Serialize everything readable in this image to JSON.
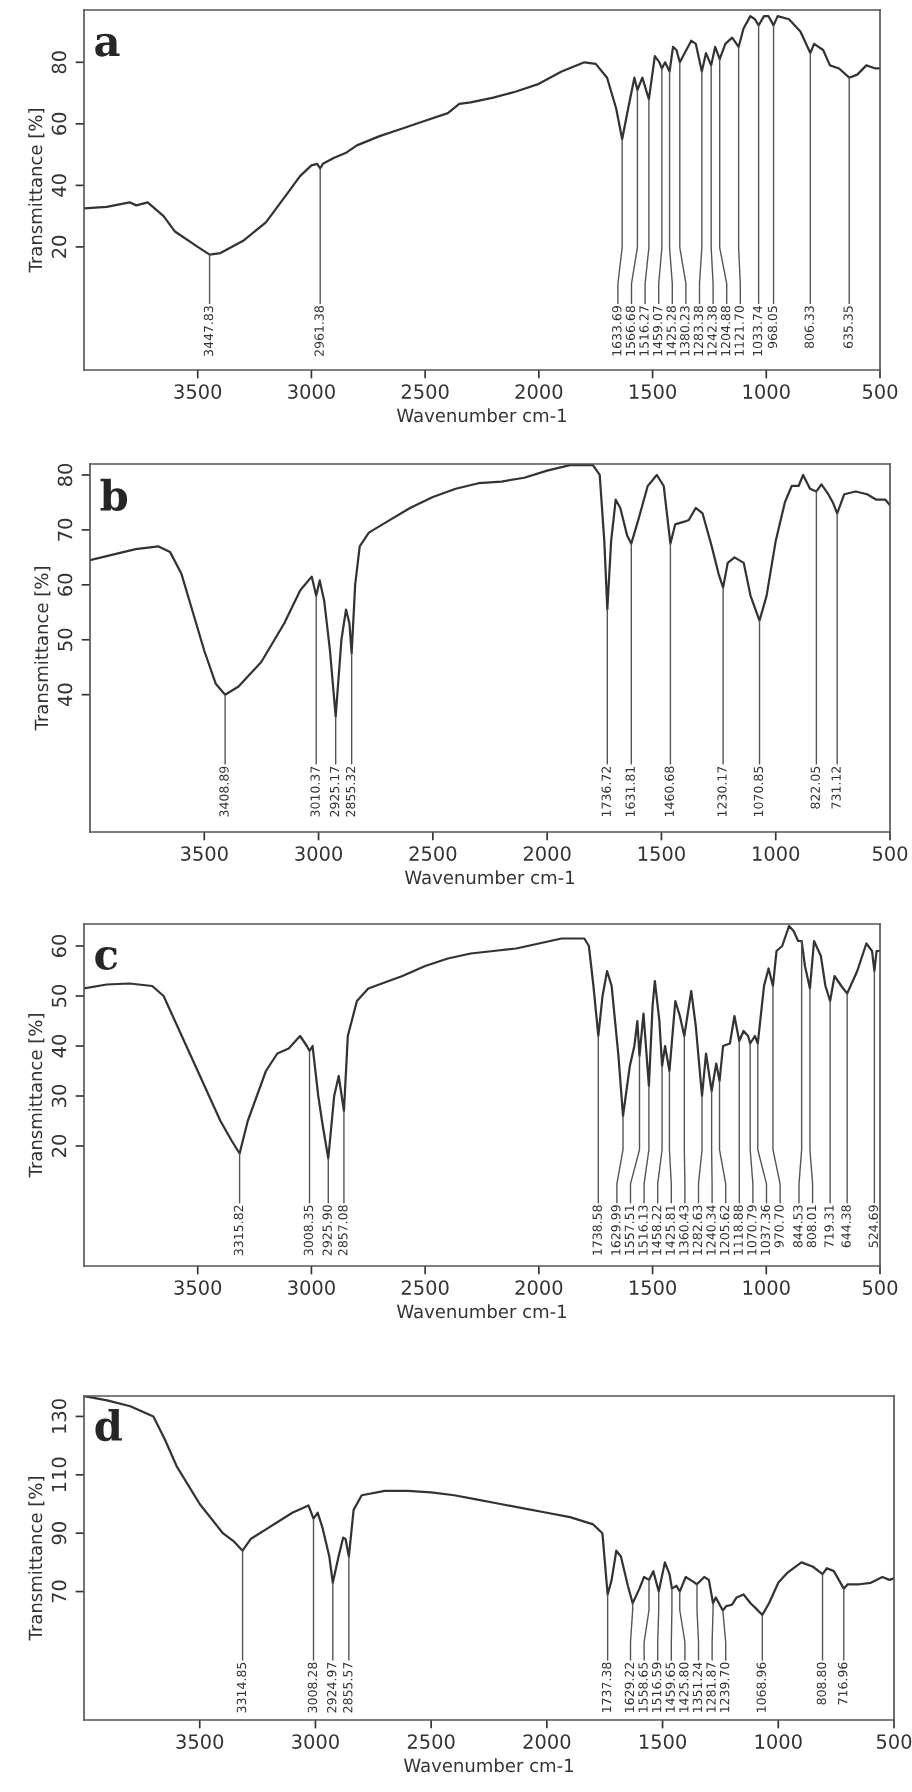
{
  "chart_data": [
    {
      "type": "line",
      "title": "a",
      "xlabel": "Wavenumber cm-1",
      "ylabel": "Transmittance [%]",
      "xlim": [
        4000,
        500
      ],
      "xticks": [
        3500,
        3000,
        2500,
        2000,
        1500,
        1000,
        500
      ],
      "ylim": [
        -20,
        97
      ],
      "yticks": [
        20,
        40,
        60,
        80
      ],
      "grid": false,
      "marker": "none",
      "line_style": "solid",
      "series": [
        {
          "color": "#333333",
          "x": [
            4000,
            3900,
            3800,
            3770,
            3720,
            3650,
            3600,
            3500,
            3447.83,
            3400,
            3300,
            3200,
            3100,
            3050,
            3000,
            2975,
            2961.38,
            2950,
            2900,
            2850,
            2800,
            2700,
            2600,
            2500,
            2400,
            2350,
            2300,
            2200,
            2100,
            2000,
            1900,
            1800,
            1750,
            1700,
            1660,
            1633.69,
            1610,
            1580,
            1566.68,
            1545,
            1516.27,
            1490,
            1470,
            1459.07,
            1445,
            1425.28,
            1410,
            1395,
            1380.23,
            1330,
            1310,
            1283.38,
            1265,
            1242.38,
            1225,
            1204.88,
            1180,
            1150,
            1121.7,
            1100,
            1070,
            1050,
            1033.74,
            1010,
            990,
            968.05,
            950,
            900,
            850,
            806.33,
            790,
            750,
            720,
            680,
            635.35,
            600,
            560,
            520,
            500
          ],
          "values": [
            32.5,
            33,
            34.5,
            33.5,
            34.5,
            30,
            25,
            20,
            17.5,
            18,
            22,
            28,
            38,
            43,
            46.5,
            47,
            45.5,
            47,
            49,
            50.5,
            53,
            56,
            58.5,
            61,
            63.5,
            66.5,
            67,
            68.5,
            70.5,
            73,
            77,
            80,
            79.5,
            75,
            65,
            55,
            64,
            75,
            71,
            75,
            68,
            82,
            80,
            78,
            80,
            77,
            85,
            84,
            80,
            87,
            86,
            77,
            83,
            79,
            85,
            81,
            86,
            88,
            85,
            91,
            95,
            94,
            92,
            95,
            95,
            92,
            95,
            94,
            90,
            83,
            86,
            84,
            79,
            78,
            75,
            76,
            79,
            78,
            78
          ]
        }
      ],
      "annotations": [
        {
          "text": "3447.83",
          "x": 3447.83,
          "y": 17.5
        },
        {
          "text": "2961.38",
          "x": 2961.38,
          "y": 45.5
        },
        {
          "text": "1633.69",
          "x": 1633.69,
          "y": 55
        },
        {
          "text": "1566.68",
          "x": 1566.68,
          "y": 71
        },
        {
          "text": "1516.27",
          "x": 1516.27,
          "y": 68
        },
        {
          "text": "1459.07",
          "x": 1459.07,
          "y": 78
        },
        {
          "text": "1425.28",
          "x": 1425.28,
          "y": 77
        },
        {
          "text": "1380.23",
          "x": 1380.23,
          "y": 80
        },
        {
          "text": "1283.38",
          "x": 1283.38,
          "y": 77
        },
        {
          "text": "1242.38",
          "x": 1242.38,
          "y": 79
        },
        {
          "text": "1204.88",
          "x": 1204.88,
          "y": 81
        },
        {
          "text": "1121.70",
          "x": 1121.7,
          "y": 85
        },
        {
          "text": "1033.74",
          "x": 1033.74,
          "y": 92
        },
        {
          "text": "968.05",
          "x": 968.05,
          "y": 92
        },
        {
          "text": "806.33",
          "x": 806.33,
          "y": 83
        },
        {
          "text": "635.35",
          "x": 635.35,
          "y": 75
        }
      ]
    },
    {
      "type": "line",
      "title": "b",
      "xlabel": "Wavenumber cm-1",
      "ylabel": "Transmittance [%]",
      "xlim": [
        4000,
        500
      ],
      "xticks": [
        3500,
        3000,
        2500,
        2000,
        1500,
        1000,
        500
      ],
      "ylim": [
        15,
        82
      ],
      "yticks": [
        40,
        50,
        60,
        70,
        80
      ],
      "grid": false,
      "marker": "none",
      "line_style": "solid",
      "series": [
        {
          "color": "#333333",
          "x": [
            4000,
            3900,
            3800,
            3700,
            3650,
            3600,
            3550,
            3500,
            3450,
            3408.89,
            3350,
            3250,
            3150,
            3080,
            3030,
            3010.37,
            2995,
            2975,
            2950,
            2925.17,
            2900,
            2880,
            2865,
            2855.32,
            2840,
            2820,
            2780,
            2700,
            2600,
            2500,
            2400,
            2300,
            2200,
            2100,
            2000,
            1900,
            1800,
            1770,
            1750,
            1736.72,
            1720,
            1700,
            1680,
            1650,
            1631.81,
            1600,
            1560,
            1520,
            1490,
            1460.68,
            1440,
            1400,
            1380,
            1350,
            1320,
            1280,
            1250,
            1230.17,
            1210,
            1180,
            1140,
            1110,
            1070.85,
            1040,
            1000,
            960,
            930,
            900,
            880,
            850,
            822.05,
            800,
            770,
            750,
            731.12,
            700,
            650,
            600,
            560,
            520,
            500
          ],
          "values": [
            64.5,
            65.5,
            66.5,
            67,
            66,
            62,
            55,
            48,
            42,
            40,
            41.5,
            46,
            53,
            59,
            61.5,
            58,
            60.8,
            57,
            48,
            36,
            50,
            55.5,
            53,
            47.5,
            60,
            67,
            69.5,
            71.5,
            74,
            76,
            77.5,
            78.5,
            78.8,
            79.5,
            80.8,
            81.8,
            81.8,
            80,
            68,
            55.5,
            68,
            75.5,
            74,
            69,
            67.5,
            72,
            78,
            80,
            78,
            67.5,
            71,
            71.5,
            71.8,
            74,
            73,
            67,
            62,
            59.5,
            64,
            65,
            64,
            58,
            53.5,
            58,
            68,
            75,
            78,
            78,
            80,
            77.5,
            77,
            78.3,
            76.5,
            75,
            73,
            76.5,
            77,
            76.5,
            75.5,
            75.5,
            74.5
          ]
        }
      ],
      "annotations": [
        {
          "text": "3408.89",
          "x": 3408.89,
          "y": 40
        },
        {
          "text": "3010.37",
          "x": 3010.37,
          "y": 58
        },
        {
          "text": "2925.17",
          "x": 2925.17,
          "y": 36
        },
        {
          "text": "2855.32",
          "x": 2855.32,
          "y": 47.5
        },
        {
          "text": "1736.72",
          "x": 1736.72,
          "y": 55.5
        },
        {
          "text": "1631.81",
          "x": 1631.81,
          "y": 67.5
        },
        {
          "text": "1460.68",
          "x": 1460.68,
          "y": 67.5
        },
        {
          "text": "1230.17",
          "x": 1230.17,
          "y": 59.5
        },
        {
          "text": "1070.85",
          "x": 1070.85,
          "y": 53.5
        },
        {
          "text": "822.05",
          "x": 822.05,
          "y": 77
        },
        {
          "text": "731.12",
          "x": 731.12,
          "y": 73
        }
      ]
    },
    {
      "type": "line",
      "title": "c",
      "xlabel": "Wavenumber cm-1",
      "ylabel": "Transmittance [%]",
      "xlim": [
        4000,
        500
      ],
      "xticks": [
        3500,
        3000,
        2500,
        2000,
        1500,
        1000,
        500
      ],
      "ylim": [
        -4,
        64.4
      ],
      "yticks": [
        20,
        30,
        40,
        50,
        60
      ],
      "grid": false,
      "marker": "none",
      "line_style": "solid",
      "series": [
        {
          "color": "#333333",
          "x": [
            4000,
            3900,
            3800,
            3700,
            3650,
            3600,
            3500,
            3400,
            3350,
            3315.82,
            3280,
            3200,
            3150,
            3100,
            3050,
            3020,
            3008.35,
            2995,
            2970,
            2950,
            2925.9,
            2900,
            2880,
            2857.08,
            2840,
            2800,
            2750,
            2600,
            2500,
            2400,
            2300,
            2200,
            2100,
            2000,
            1900,
            1800,
            1780,
            1760,
            1738.58,
            1720,
            1700,
            1680,
            1650,
            1629.99,
            1600,
            1580,
            1567,
            1557.51,
            1540,
            1516.13,
            1500,
            1490,
            1470,
            1458.22,
            1445,
            1425.81,
            1400,
            1380,
            1360.43,
            1330,
            1310,
            1282.63,
            1265,
            1240.34,
            1220,
            1205.62,
            1190,
            1160,
            1140,
            1118.88,
            1100,
            1080,
            1070.79,
            1050,
            1037.36,
            1010,
            990,
            970.7,
            955,
            930,
            900,
            880,
            860,
            844.53,
            830,
            808.01,
            790,
            760,
            740,
            719.31,
            700,
            670,
            644.38,
            600,
            560,
            535,
            524.69,
            515,
            500
          ],
          "values": [
            51.5,
            52.3,
            52.5,
            52,
            50,
            45,
            35,
            25,
            21,
            18.5,
            25,
            35,
            38.5,
            39.5,
            42,
            40,
            39,
            40,
            30,
            24,
            17.5,
            30,
            34,
            27,
            42,
            49,
            51.5,
            54,
            56,
            57.5,
            58.5,
            59,
            59.5,
            60.5,
            61.5,
            61.5,
            60,
            52,
            42,
            50,
            55,
            52,
            38,
            26,
            36,
            40,
            45,
            38,
            46.5,
            32,
            48,
            53,
            45,
            36,
            40,
            35,
            49,
            46,
            42,
            51,
            44,
            30,
            38.5,
            31,
            36.5,
            33,
            40,
            40.5,
            46,
            41,
            43,
            42,
            40.5,
            42,
            40.5,
            52,
            55.5,
            52,
            59,
            60,
            64,
            63,
            61,
            61,
            56,
            51.5,
            61,
            58,
            52,
            49,
            54,
            52,
            50.5,
            55,
            60.5,
            59,
            55,
            59,
            59
          ]
        }
      ],
      "annotations": [
        {
          "text": "3315.82",
          "x": 3315.82,
          "y": 18.5
        },
        {
          "text": "3008.35",
          "x": 3008.35,
          "y": 39
        },
        {
          "text": "2925.90",
          "x": 2925.9,
          "y": 17.5
        },
        {
          "text": "2857.08",
          "x": 2857.08,
          "y": 27
        },
        {
          "text": "1738.58",
          "x": 1738.58,
          "y": 42
        },
        {
          "text": "1629.99",
          "x": 1629.99,
          "y": 26
        },
        {
          "text": "1557.51",
          "x": 1557.51,
          "y": 38
        },
        {
          "text": "1516.13",
          "x": 1516.13,
          "y": 32
        },
        {
          "text": "1458.22",
          "x": 1458.22,
          "y": 36
        },
        {
          "text": "1425.81",
          "x": 1425.81,
          "y": 35
        },
        {
          "text": "1360.43",
          "x": 1360.43,
          "y": 42
        },
        {
          "text": "1282.63",
          "x": 1282.63,
          "y": 30
        },
        {
          "text": "1240.34",
          "x": 1240.34,
          "y": 31
        },
        {
          "text": "1205.62",
          "x": 1205.62,
          "y": 33
        },
        {
          "text": "1118.88",
          "x": 1118.88,
          "y": 41
        },
        {
          "text": "1070.79",
          "x": 1070.79,
          "y": 40.5
        },
        {
          "text": "1037.36",
          "x": 1037.36,
          "y": 40.5
        },
        {
          "text": "970.70",
          "x": 970.7,
          "y": 52
        },
        {
          "text": "844.53",
          "x": 844.53,
          "y": 61
        },
        {
          "text": "808.01",
          "x": 808.01,
          "y": 51.5
        },
        {
          "text": "719.31",
          "x": 719.31,
          "y": 49
        },
        {
          "text": "644.38",
          "x": 644.38,
          "y": 50.5
        },
        {
          "text": "524.69",
          "x": 524.69,
          "y": 55
        }
      ]
    },
    {
      "type": "line",
      "title": "d",
      "xlabel": "Wavenumber cm-1",
      "ylabel": "Transmittance [%]",
      "xlim": [
        4000,
        500
      ],
      "xticks": [
        3500,
        3000,
        2500,
        2000,
        1500,
        1000,
        500
      ],
      "ylim": [
        26,
        137
      ],
      "yticks": [
        70,
        90,
        110,
        130
      ],
      "grid": false,
      "marker": "none",
      "line_style": "solid",
      "series": [
        {
          "color": "#333333",
          "x": [
            4000,
            3900,
            3800,
            3700,
            3650,
            3600,
            3500,
            3400,
            3350,
            3314.85,
            3280,
            3200,
            3100,
            3030,
            3008.28,
            2990,
            2970,
            2940,
            2924.97,
            2900,
            2880,
            2870,
            2855.57,
            2835,
            2800,
            2700,
            2600,
            2500,
            2400,
            2300,
            2200,
            2100,
            2000,
            1900,
            1800,
            1760,
            1737.38,
            1720,
            1700,
            1680,
            1650,
            1629.22,
            1600,
            1580,
            1558.65,
            1540,
            1516.59,
            1490,
            1470,
            1459.65,
            1440,
            1425.8,
            1400,
            1370,
            1351.24,
            1320,
            1300,
            1281.87,
            1270,
            1239.7,
            1225,
            1200,
            1180,
            1150,
            1120,
            1100,
            1068.96,
            1040,
            1000,
            960,
            900,
            850,
            808.8,
            790,
            760,
            716.96,
            700,
            650,
            600,
            550,
            520,
            500
          ],
          "values": [
            137,
            135.5,
            133.5,
            130,
            122,
            113,
            100,
            90,
            87,
            84,
            88,
            92,
            97,
            99.5,
            95,
            97,
            92,
            82,
            73,
            82,
            88.5,
            88,
            82,
            98,
            103,
            104.5,
            104.5,
            104,
            103,
            101.5,
            100,
            98.5,
            97,
            95.5,
            93,
            90,
            69,
            74,
            84,
            82,
            72,
            66,
            71,
            75,
            74,
            77,
            70,
            80,
            76,
            71,
            72,
            70,
            75,
            73.5,
            72.5,
            75,
            74,
            66,
            68,
            63.5,
            65,
            65.5,
            68,
            69,
            66,
            64.5,
            62,
            66,
            73,
            76.5,
            80,
            78.5,
            76,
            78,
            77,
            71,
            72.5,
            72.5,
            73,
            75,
            74,
            74.5
          ]
        }
      ],
      "annotations": [
        {
          "text": "3314.85",
          "x": 3314.85,
          "y": 84
        },
        {
          "text": "3008.28",
          "x": 3008.28,
          "y": 95
        },
        {
          "text": "2924.97",
          "x": 2924.97,
          "y": 73
        },
        {
          "text": "2855.57",
          "x": 2855.57,
          "y": 82
        },
        {
          "text": "1737.38",
          "x": 1737.38,
          "y": 69
        },
        {
          "text": "1629.22",
          "x": 1629.22,
          "y": 66
        },
        {
          "text": "1558.65",
          "x": 1558.65,
          "y": 74
        },
        {
          "text": "1516.59",
          "x": 1516.59,
          "y": 70
        },
        {
          "text": "1459.65",
          "x": 1459.65,
          "y": 71
        },
        {
          "text": "1425.80",
          "x": 1425.8,
          "y": 70
        },
        {
          "text": "1351.24",
          "x": 1351.24,
          "y": 72.5
        },
        {
          "text": "1281.87",
          "x": 1281.87,
          "y": 66
        },
        {
          "text": "1239.70",
          "x": 1239.7,
          "y": 63.5
        },
        {
          "text": "1068.96",
          "x": 1068.96,
          "y": 62
        },
        {
          "text": "808.80",
          "x": 808.8,
          "y": 76
        },
        {
          "text": "716.96",
          "x": 716.96,
          "y": 71
        }
      ]
    }
  ]
}
